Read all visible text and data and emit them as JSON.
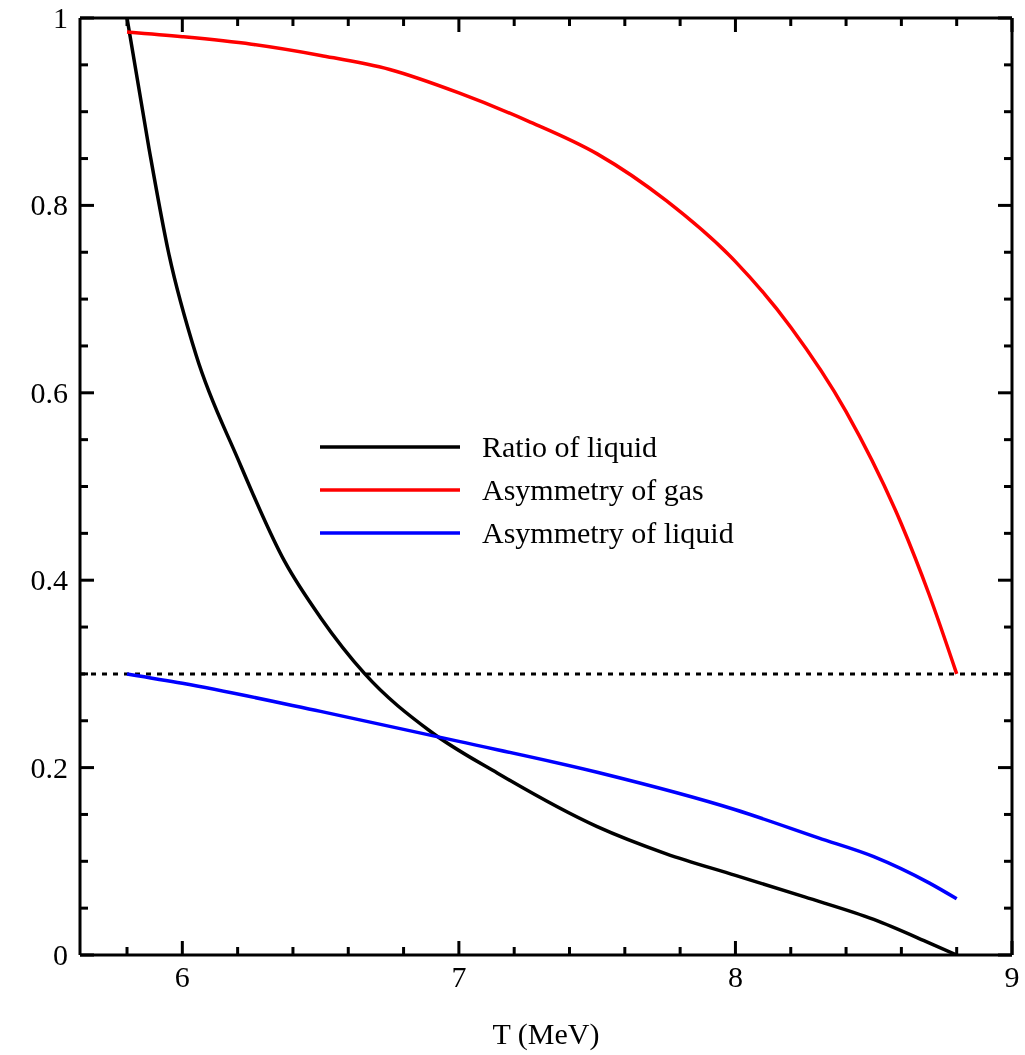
{
  "chart_data": {
    "type": "line",
    "xlabel": "T (MeV)",
    "xlim": [
      5.63,
      9
    ],
    "xticks": [
      {
        "value": 5.8,
        "label": null
      },
      6,
      {
        "value": 6.2,
        "label": null
      },
      {
        "value": 6.4,
        "label": null
      },
      {
        "value": 6.6,
        "label": null
      },
      {
        "value": 6.8,
        "label": null
      },
      7,
      {
        "value": 7.2,
        "label": null
      },
      {
        "value": 7.4,
        "label": null
      },
      {
        "value": 7.6,
        "label": null
      },
      {
        "value": 7.8,
        "label": null
      },
      8,
      {
        "value": 8.2,
        "label": null
      },
      {
        "value": 8.4,
        "label": null
      },
      {
        "value": 8.6,
        "label": null
      },
      {
        "value": 8.8,
        "label": null
      },
      9
    ],
    "ylim": [
      0,
      1
    ],
    "yticks": [
      0,
      {
        "value": 0.05,
        "label": null
      },
      {
        "value": 0.1,
        "label": null
      },
      {
        "value": 0.15,
        "label": null
      },
      0.2,
      {
        "value": 0.25,
        "label": null
      },
      {
        "value": 0.3,
        "label": null
      },
      {
        "value": 0.35,
        "label": null
      },
      0.4,
      {
        "value": 0.45,
        "label": null
      },
      {
        "value": 0.5,
        "label": null
      },
      {
        "value": 0.55,
        "label": null
      },
      0.6,
      {
        "value": 0.65,
        "label": null
      },
      {
        "value": 0.7,
        "label": null
      },
      {
        "value": 0.75,
        "label": null
      },
      0.8,
      {
        "value": 0.85,
        "label": null
      },
      {
        "value": 0.9,
        "label": null
      },
      {
        "value": 0.95,
        "label": null
      },
      1
    ],
    "legend": "center",
    "marker": "none",
    "line_style": "solid",
    "ref_lines": [
      {
        "axis": "y",
        "value": 0.3,
        "color": "#000000",
        "line_style": "dotted"
      }
    ],
    "series": [
      {
        "name": "Ratio of liquid",
        "color": "#000000",
        "x": [
          5.8,
          5.88,
          5.95,
          6.05,
          6.2,
          6.37,
          6.5,
          6.66,
          6.9,
          7.14,
          7.5,
          7.75,
          8.0,
          8.25,
          8.5,
          8.7,
          8.8
        ],
        "values": [
          1.0,
          0.86,
          0.75,
          0.64,
          0.53,
          0.42,
          0.36,
          0.3,
          0.238,
          0.194,
          0.137,
          0.108,
          0.085,
          0.062,
          0.038,
          0.013,
          0.0
        ]
      },
      {
        "name": "Asymmetry of gas",
        "color": "#ff0000",
        "x": [
          5.8,
          6.0,
          6.25,
          6.5,
          6.75,
          7.0,
          7.25,
          7.5,
          7.75,
          8.0,
          8.2,
          8.4,
          8.6,
          8.7,
          8.8
        ],
        "values": [
          0.985,
          0.98,
          0.972,
          0.96,
          0.945,
          0.92,
          0.89,
          0.855,
          0.805,
          0.74,
          0.67,
          0.58,
          0.46,
          0.385,
          0.3
        ]
      },
      {
        "name": "Asymmetry of liquid",
        "color": "#0000ff",
        "x": [
          5.8,
          6.0,
          6.5,
          7.0,
          7.5,
          8.0,
          8.3,
          8.5,
          8.7,
          8.8
        ],
        "values": [
          0.3,
          0.29,
          0.26,
          0.228,
          0.195,
          0.155,
          0.125,
          0.105,
          0.077,
          0.06
        ]
      }
    ]
  }
}
